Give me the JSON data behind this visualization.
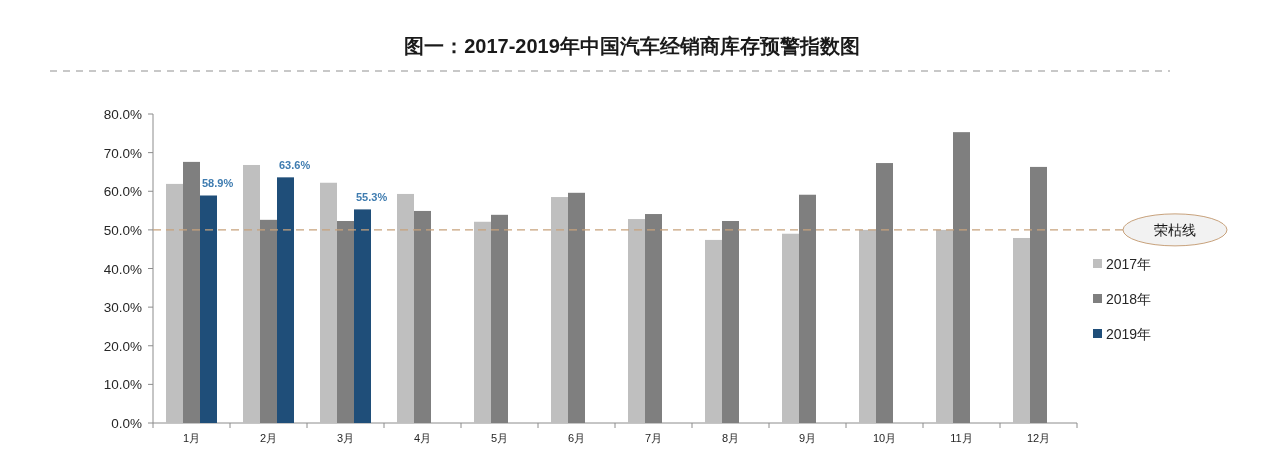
{
  "chart_data": {
    "type": "bar",
    "title": "图一：2017-2019年中国汽车经销商库存预警指数图",
    "categories": [
      "1月",
      "2月",
      "3月",
      "4月",
      "5月",
      "6月",
      "7月",
      "8月",
      "9月",
      "10月",
      "11月",
      "12月"
    ],
    "series": [
      {
        "name": "2017年",
        "color": "#bfbfbf",
        "values": [
          61.9,
          66.8,
          62.2,
          59.3,
          52.1,
          58.5,
          52.8,
          47.4,
          49.0,
          50.0,
          50.0,
          47.9
        ]
      },
      {
        "name": "2018年",
        "color": "#7f7f7f",
        "values": [
          67.6,
          52.6,
          52.3,
          54.9,
          53.9,
          59.6,
          54.1,
          52.3,
          59.1,
          67.3,
          75.3,
          66.3
        ]
      },
      {
        "name": "2019年",
        "color": "#1f4e79",
        "values": [
          58.9,
          63.6,
          55.3,
          null,
          null,
          null,
          null,
          null,
          null,
          null,
          null,
          null
        ],
        "value_labels": [
          "58.9%",
          "63.6%",
          "55.3%",
          null,
          null,
          null,
          null,
          null,
          null,
          null,
          null,
          null
        ]
      }
    ],
    "ylim": [
      0,
      80
    ],
    "yticks": [
      {
        "value": 0,
        "label": "0.0%"
      },
      {
        "value": 10,
        "label": "10.0%"
      },
      {
        "value": 20,
        "label": "20.0%"
      },
      {
        "value": 30,
        "label": "30.0%"
      },
      {
        "value": 40,
        "label": "40.0%"
      },
      {
        "value": 50,
        "label": "50.0%"
      },
      {
        "value": 60,
        "label": "60.0%"
      },
      {
        "value": 70,
        "label": "70.0%"
      },
      {
        "value": 80,
        "label": "80.0%"
      }
    ],
    "ref_lines": [
      {
        "axis": "y",
        "value": 50,
        "label": "荣枯线",
        "color": "#c8a27c",
        "line_style": "dashed"
      }
    ],
    "legend": "right"
  }
}
